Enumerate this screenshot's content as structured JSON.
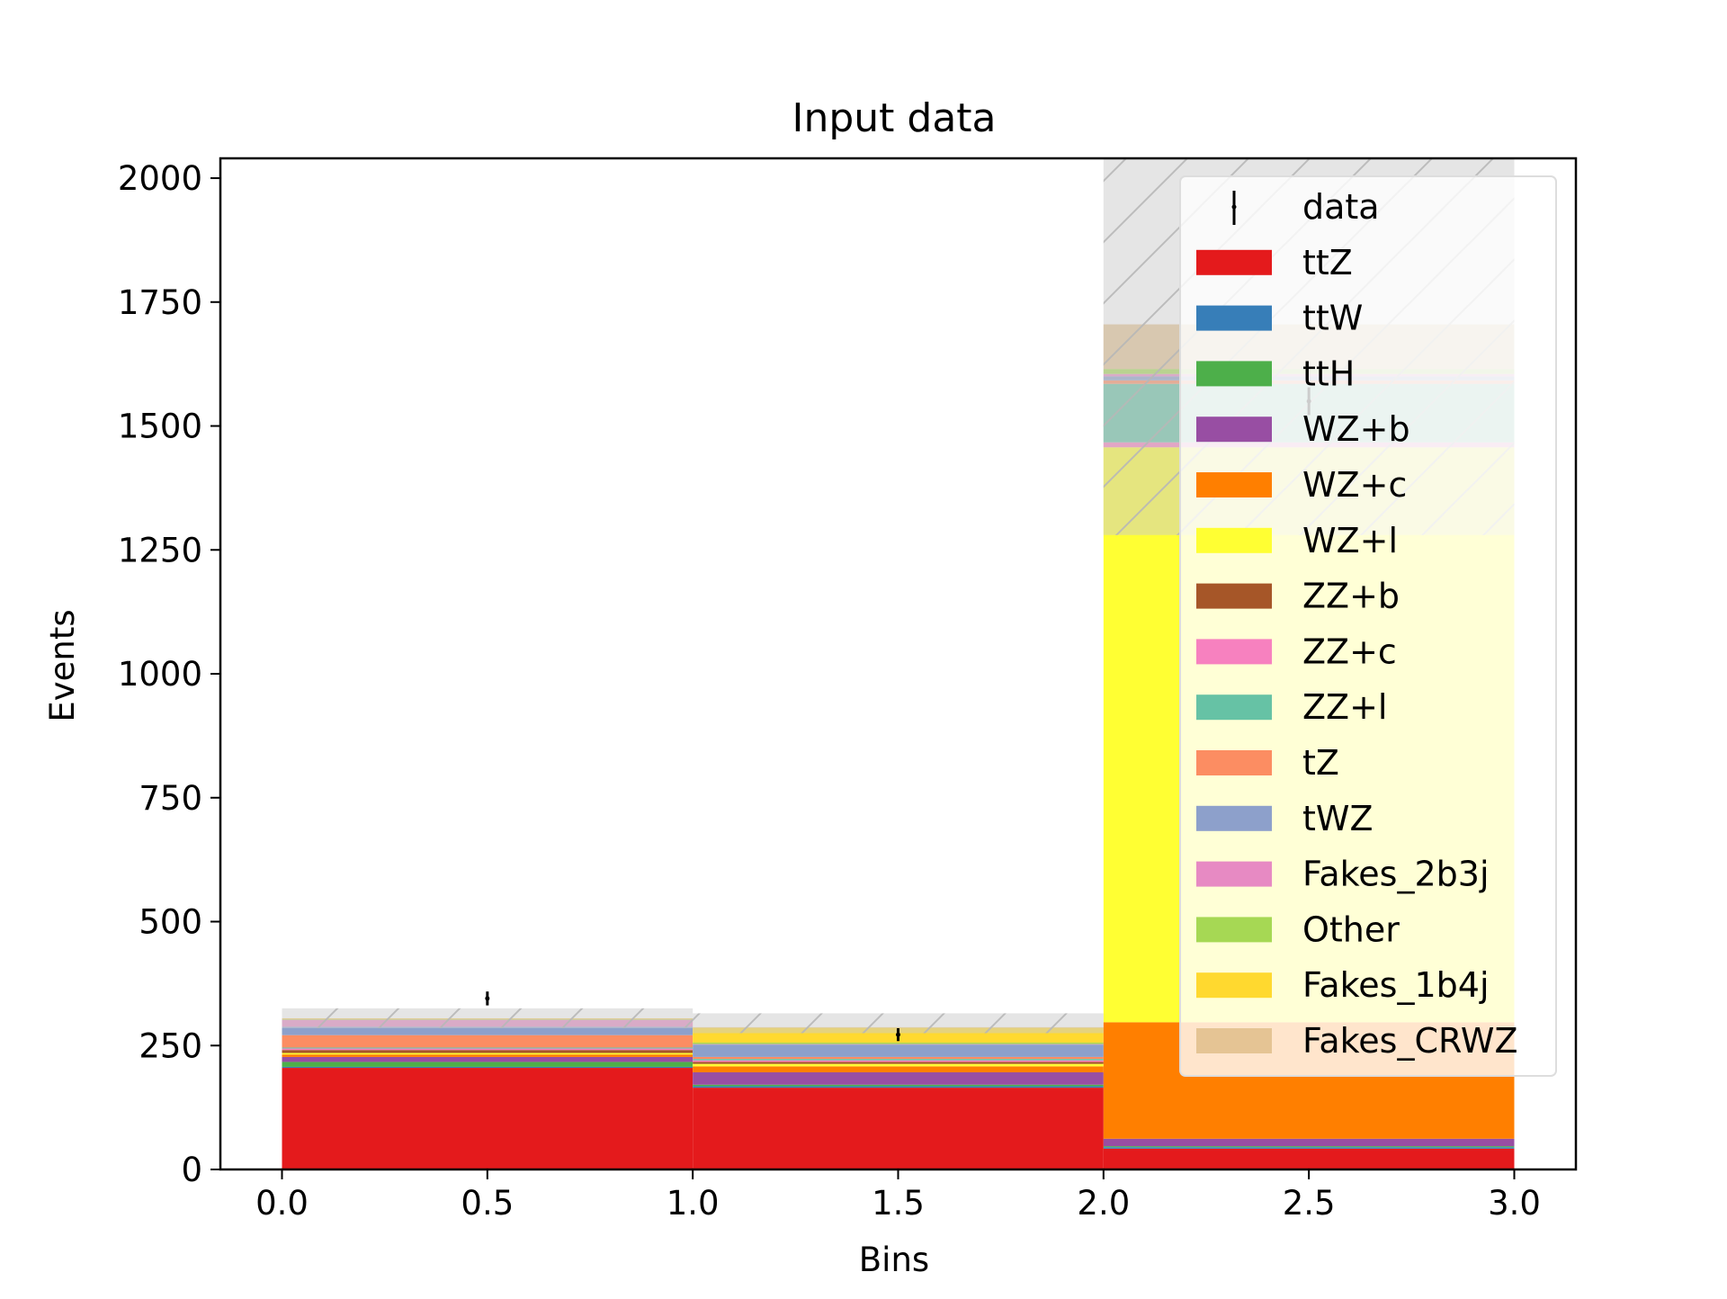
{
  "chart_data": {
    "type": "bar",
    "stacked": true,
    "title": "Input data",
    "xlabel": "Bins",
    "ylabel": "Events",
    "xlim": [
      -0.15,
      3.15
    ],
    "ylim": [
      0,
      2040
    ],
    "x_ticks": [
      "0.0",
      "0.5",
      "1.0",
      "1.5",
      "2.0",
      "2.5",
      "3.0"
    ],
    "y_ticks": [
      "0",
      "250",
      "500",
      "750",
      "1000",
      "1250",
      "1500",
      "1750",
      "2000"
    ],
    "bin_edges": [
      0,
      1,
      2,
      3
    ],
    "bin_centers": [
      0.5,
      1.5,
      2.5
    ],
    "legend_position": "upper-right",
    "series": [
      {
        "name": "ttZ",
        "color": "#e41a1c",
        "values": [
          205,
          165,
          42
        ]
      },
      {
        "name": "ttW",
        "color": "#377eb8",
        "values": [
          2,
          3,
          3
        ]
      },
      {
        "name": "ttH",
        "color": "#4daf4a",
        "values": [
          10,
          3,
          2
        ]
      },
      {
        "name": "WZ+b",
        "color": "#984ea3",
        "values": [
          10,
          25,
          15
        ]
      },
      {
        "name": "WZ+c",
        "color": "#ff7f00",
        "values": [
          5,
          12,
          235
        ]
      },
      {
        "name": "WZ+l",
        "color": "#ffff33",
        "values": [
          3,
          5,
          1160
        ]
      },
      {
        "name": "ZZ+b",
        "color": "#a65628",
        "values": [
          6,
          4,
          0
        ]
      },
      {
        "name": "ZZ+c",
        "color": "#f781bf",
        "values": [
          3,
          3,
          10
        ]
      },
      {
        "name": "ZZ+l",
        "color": "#66c2a5",
        "values": [
          2,
          3,
          118
        ]
      },
      {
        "name": "tZ",
        "color": "#fc8d62",
        "values": [
          25,
          4,
          7
        ]
      },
      {
        "name": "tWZ",
        "color": "#8da0cb",
        "values": [
          17,
          25,
          8
        ]
      },
      {
        "name": "Fakes_2b3j",
        "color": "#e78ac3",
        "values": [
          14,
          1,
          5
        ]
      },
      {
        "name": "Other",
        "color": "#a6d854",
        "values": [
          1,
          3,
          10
        ]
      },
      {
        "name": "Fakes_1b4j",
        "color": "#ffd92f",
        "values": [
          1,
          30,
          0
        ]
      },
      {
        "name": "Fakes_CRWZ",
        "color": "#e5c494",
        "values": [
          1,
          1,
          90
        ]
      }
    ],
    "data_points": {
      "name": "data",
      "x": [
        0.5,
        1.5,
        2.5
      ],
      "y": [
        345,
        272,
        1550
      ],
      "yerr": [
        14,
        13,
        28
      ]
    },
    "uncertainty_band": {
      "low": [
        285,
        275,
        1280
      ],
      "high": [
        325,
        315,
        2040
      ],
      "color": "#cccccc",
      "hatch": "///"
    }
  }
}
